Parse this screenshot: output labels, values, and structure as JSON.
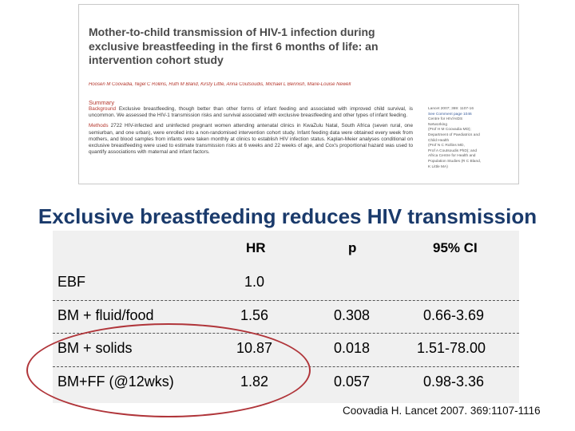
{
  "paper": {
    "title": "Mother-to-child transmission of HIV-1 infection during exclusive breastfeeding in the first 6 months of life: an intervention cohort study",
    "authors": "Hoosen M Coovadia, Nigel C Rollins, Ruth M Bland, Kirsty Little, Anna Coutsoudis, Michael L Bennish, Marie-Louise Newell",
    "summary_label": "Summary",
    "background_label": "Background",
    "background_text": "Exclusive breastfeeding, though better than other forms of infant feeding and associated with improved child survival, is uncommon. We assessed the HIV-1 transmission risks and survival associated with exclusive breastfeeding and other types of infant feeding.",
    "methods_label": "Methods",
    "methods_text": "2722 HIV-infected and uninfected pregnant women attending antenatal clinics in KwaZulu Natal, South Africa (seven rural, one semiurban, and one urban), were enrolled into a non-randomised intervention cohort study. Infant feeding data were obtained every week from mothers, and blood samples from infants were taken monthly at clinics to establish HIV infection status. Kaplan-Meier analyses conditional on exclusive breastfeeding were used to estimate transmission risks at 6 weeks and 22 weeks of age, and Cox's proportional hazard was used to quantify associations with maternal and infant factors.",
    "side_ref": "Lancet 2007; 369: 1107-16",
    "side_comment": "See Comment page 1046",
    "side_lines": [
      "Centre for HIV/AIDS",
      "Networking",
      "(Prof H M Coovadia MD);",
      "Department of Paediatrics and",
      "Child Health",
      "(Prof N C Rollins MD,",
      "Prof A Coutsoudis PhD); and",
      "Africa Centre for Health and",
      "Population Studies (R C Bland,",
      "K Little MA)"
    ]
  },
  "slide": {
    "title": "Exclusive breastfeeding reduces HIV transmission"
  },
  "table": {
    "headers": [
      "",
      "HR",
      "p",
      "95% CI"
    ],
    "rows": [
      [
        "EBF",
        "1.0",
        "",
        ""
      ],
      [
        "BM + fluid/food",
        "1.56",
        "0.308",
        "0.66-3.69"
      ],
      [
        "BM + solids",
        "10.87",
        "0.018",
        "1.51-78.00"
      ],
      [
        "BM+FF (@12wks)",
        "1.82",
        "0.057",
        "0.98-3.36"
      ]
    ]
  },
  "citation": "Coovadia H. Lancet 2007. 369:1107-1116",
  "colors": {
    "title": "#1a3a6b",
    "paper_accent": "#b5372d",
    "highlight_circle": "#b0353a",
    "table_bg": "#f0f0f0"
  }
}
